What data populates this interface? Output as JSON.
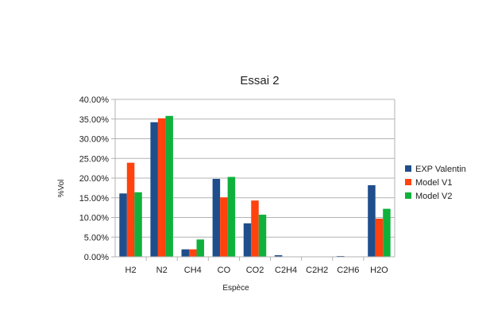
{
  "chart_data": {
    "type": "bar",
    "title": "Essai 2",
    "xlabel": "Espèce",
    "ylabel": "%Vol",
    "categories": [
      "H2",
      "N2",
      "CH4",
      "CO",
      "CO2",
      "C2H4",
      "C2H2",
      "C2H6",
      "H2O"
    ],
    "y_ticks": [
      "0.00%",
      "5.00%",
      "10.00%",
      "15.00%",
      "20.00%",
      "25.00%",
      "30.00%",
      "35.00%",
      "40.00%"
    ],
    "ylim": [
      0,
      40
    ],
    "grid": true,
    "legend_position": "right",
    "series": [
      {
        "name": "EXP Valentin",
        "color": "#1f4e8c",
        "values": [
          16.1,
          34.2,
          1.9,
          19.8,
          8.5,
          0.4,
          0.0,
          0.2,
          18.2
        ]
      },
      {
        "name": "Model V1",
        "color": "#ff420e",
        "values": [
          23.9,
          35.2,
          1.9,
          15.1,
          14.3,
          0.0,
          0.0,
          0.0,
          9.7
        ]
      },
      {
        "name": "Model V2",
        "color": "#0fb13c",
        "values": [
          16.4,
          35.8,
          4.4,
          20.3,
          10.7,
          0.0,
          0.0,
          0.0,
          12.2
        ]
      }
    ]
  }
}
